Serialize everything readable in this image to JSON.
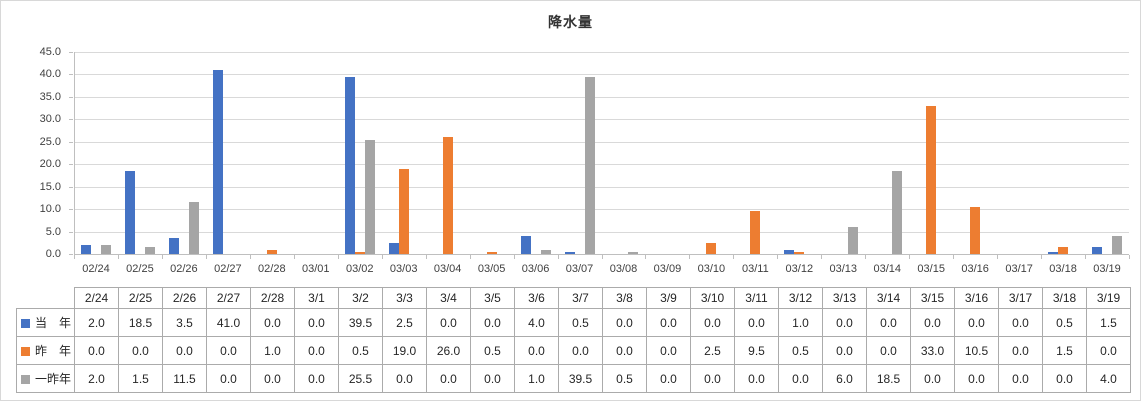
{
  "chart_data": {
    "type": "bar",
    "title": "降水量",
    "categories": [
      "02/24",
      "02/25",
      "02/26",
      "02/27",
      "02/28",
      "03/01",
      "03/02",
      "03/03",
      "03/04",
      "03/05",
      "03/06",
      "03/07",
      "03/08",
      "03/09",
      "03/10",
      "03/11",
      "03/12",
      "03/13",
      "03/14",
      "03/15",
      "03/16",
      "03/17",
      "03/18",
      "03/19"
    ],
    "series": [
      {
        "name": "当　年",
        "color": "#4472C4",
        "values": [
          2.0,
          18.5,
          3.5,
          41.0,
          0.0,
          0.0,
          39.5,
          2.5,
          0.0,
          0.0,
          4.0,
          0.5,
          0.0,
          0.0,
          0.0,
          0.0,
          1.0,
          0.0,
          0.0,
          0.0,
          0.0,
          0.0,
          0.5,
          1.5
        ]
      },
      {
        "name": "昨　年",
        "color": "#ED7D31",
        "values": [
          0.0,
          0.0,
          0.0,
          0.0,
          1.0,
          0.0,
          0.5,
          19.0,
          26.0,
          0.5,
          0.0,
          0.0,
          0.0,
          0.0,
          2.5,
          9.5,
          0.5,
          0.0,
          0.0,
          33.0,
          10.5,
          0.0,
          1.5,
          0.0
        ]
      },
      {
        "name": "一昨年",
        "color": "#A5A5A5",
        "values": [
          2.0,
          1.5,
          11.5,
          0.0,
          0.0,
          0.0,
          25.5,
          0.0,
          0.0,
          0.0,
          1.0,
          39.5,
          0.5,
          0.0,
          0.0,
          0.0,
          0.0,
          6.0,
          18.5,
          0.0,
          0.0,
          0.0,
          0.0,
          4.0
        ]
      }
    ],
    "ylim": [
      0,
      45
    ],
    "ytick_step": 5,
    "ytick_labels": [
      "0.0",
      "5.0",
      "10.0",
      "15.0",
      "20.0",
      "25.0",
      "30.0",
      "35.0",
      "40.0",
      "45.0"
    ],
    "grid": true,
    "legend_position": "table-rows-left",
    "xlabel": "",
    "ylabel": ""
  },
  "table": {
    "header_dates": [
      "2/24",
      "2/25",
      "2/26",
      "2/27",
      "2/28",
      "3/1",
      "3/2",
      "3/3",
      "3/4",
      "3/5",
      "3/6",
      "3/7",
      "3/8",
      "3/9",
      "3/10",
      "3/11",
      "3/12",
      "3/13",
      "3/14",
      "3/15",
      "3/16",
      "3/17",
      "3/18",
      "3/19"
    ],
    "row_labels": [
      "当　年",
      "昨　年",
      "一昨年"
    ],
    "value_decimals": 1
  },
  "colors": {
    "series_blue": "#4472C4",
    "series_orange": "#ED7D31",
    "series_gray": "#A5A5A5",
    "gridline": "#D9D9D9",
    "axis_line": "#BFBFBF",
    "axis_text": "#404040",
    "table_border": "#ABABAB",
    "table_text": "#262626"
  }
}
